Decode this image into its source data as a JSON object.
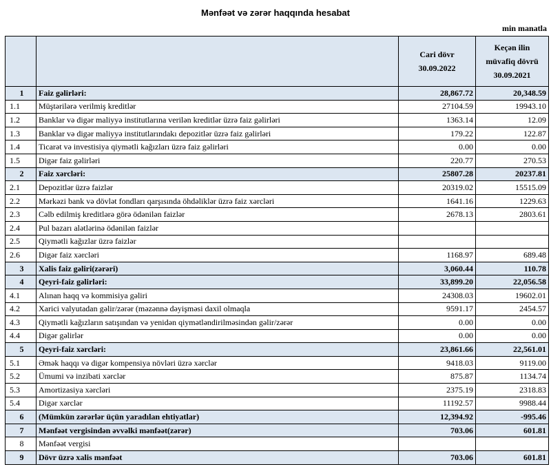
{
  "title": "Mənfəət və zərər haqqında hesabat",
  "unit": "min manatla",
  "table": {
    "header": [
      [
        "Cari dövr",
        "30.09.2022"
      ],
      [
        "Keçən ilin",
        "müvafiq dövrü",
        "30.09.2021"
      ]
    ],
    "rows": [
      [
        "1",
        "Faiz gəlirləri:",
        "28,867.72",
        "20,348.59"
      ],
      [
        "1.1",
        "Müştərilərə verilmiş kreditlər",
        "27104.59",
        "19943.10"
      ],
      [
        "1.2",
        "Banklar və digər maliyyə institutlarına verilən kreditlər üzrə faiz gəlirləri",
        "1363.14",
        "12.09"
      ],
      [
        "1.3",
        "Banklar və digər maliyyə institutlarındakı depozitlər üzrə faiz gəlirləri",
        "179.22",
        "122.87"
      ],
      [
        "1.4",
        "Ticarət və investisiya qiymətli kağızları üzrə faiz gəlirləri",
        "0.00",
        "0.00"
      ],
      [
        "1.5",
        "Digər faiz gəlirləri",
        "220.77",
        "270.53"
      ],
      [
        "2",
        "Faiz xərcləri:",
        "25807.28",
        "20237.81"
      ],
      [
        "2.1",
        "Depozitlər üzrə faizlər",
        "20319.02",
        "15515.09"
      ],
      [
        "2.2",
        "Mərkəzi bank və dövlət fondları qarşısında öhdəliklər üzrə faiz xərcləri",
        "1641.16",
        "1229.63"
      ],
      [
        "2.3",
        "Cəlb edilmiş kreditlərə görə ödənilən faizlər",
        "2678.13",
        "2803.61"
      ],
      [
        "2.4",
        "Pul bazarı alətlərinə ödənilən faizlər",
        null,
        null
      ],
      [
        "2.5",
        "Qiymətli kağızlar üzrə faizlər",
        null,
        null
      ],
      [
        "2.6",
        "Digər faiz xərcləri",
        "1168.97",
        "689.48"
      ],
      [
        "3",
        "Xalis faiz gəliri(zərəri)",
        "3,060.44",
        "110.78"
      ],
      [
        "4",
        "Qeyri-faiz gəlirləri:",
        "33,899.20",
        "22,056.58"
      ],
      [
        "4.1",
        "Alınan haqq və kommisiya gəliri",
        "24308.03",
        "19602.01"
      ],
      [
        "4.2",
        "Xarici valyutadan gəlir/zərər (məzənnə dəyişməsi daxil olmaqla",
        "9591.17",
        "2454.57"
      ],
      [
        "4.3",
        "Qiymətli kağızların satışından və yenidən qiymətləndirilməsindən gəlir/zərər",
        "0.00",
        "0.00"
      ],
      [
        "4.4",
        "Digər gəlirlər",
        "0.00",
        "0.00"
      ],
      [
        "5",
        "Qeyri-faiz xərcləri:",
        "23,861.66",
        "22,561.01"
      ],
      [
        "5.1",
        "Əmək haqqı və digər kompensiya növləri üzrə xərclər",
        "9418.03",
        "9119.00"
      ],
      [
        "5.2",
        "Ümumi və inzibati xərclər",
        "875.87",
        "1134.74"
      ],
      [
        "5.3",
        "Amortizasiya xərcləri",
        "2375.19",
        "2318.83"
      ],
      [
        "5.4",
        "Digər xərclər",
        "11192.57",
        "9988.44"
      ],
      [
        "6",
        "(Mümkün zərərlər üçün yaradılan ehtiyatlar)",
        "12,394.92",
        "-995.46"
      ],
      [
        "7",
        "Mənfəət vergisindən əvvəlki mənfəət(zərər)",
        "703.06",
        "601.81"
      ],
      [
        "8",
        "Mənfəət vergisi",
        null,
        null
      ],
      [
        "9",
        "Dövr üzrə xalis mənfəət",
        "703.06",
        "601.81"
      ]
    ]
  }
}
